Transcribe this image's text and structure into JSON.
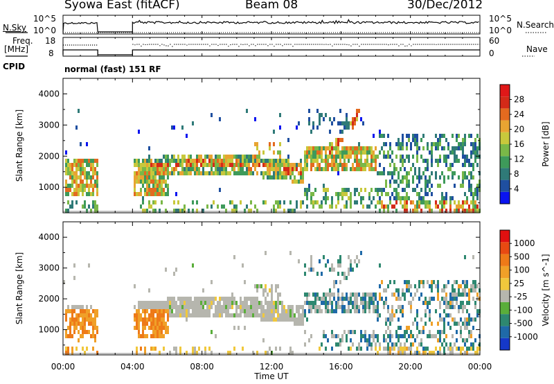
{
  "header": {
    "title": "Syowa East (fitACF)",
    "beam": "Beam 08",
    "date": "30/Dec/2012"
  },
  "strips": {
    "nsky_label": "N.Sky",
    "nsky_ticks": [
      "10^5",
      "10^0"
    ],
    "nsearch_label": "N.Search",
    "nsearch_ticks": [
      "10^5",
      "10^0"
    ],
    "freq_label_1": "Freq.",
    "freq_label_2": "[MHz]",
    "freq_ticks": [
      "18",
      "8"
    ],
    "nave_label": "Nave",
    "nave_ticks": [
      "60",
      "0"
    ],
    "cpid_label": "CPID",
    "cpid_value": "normal (fast) 151 RF"
  },
  "chart_data": [
    {
      "type": "heatmap",
      "ylabel": "Slant Range [km]",
      "ylim": [
        180,
        4500
      ],
      "y_ticks": [
        "4000",
        "3000",
        "2000",
        "1000"
      ],
      "x_ticks": [
        "00:00",
        "04:00",
        "08:00",
        "12:00",
        "16:00",
        "20:00",
        "00:00"
      ],
      "xlim_hours": [
        0,
        24
      ],
      "data_gap_hours": [
        2,
        4
      ],
      "colorbar": {
        "label": "Power [dB]",
        "ticks": [
          "28",
          "24",
          "20",
          "16",
          "12",
          "8",
          "4"
        ],
        "colors": [
          "#0a14f0",
          "#1f4fa0",
          "#2f7a78",
          "#3e9a5a",
          "#7ab848",
          "#c8c83c",
          "#e8a432",
          "#e36a1f",
          "#d42a18",
          "#e01818"
        ]
      },
      "features": [
        {
          "hours": [
            0.0,
            2.0
          ],
          "range_km": [
            700,
            1800
          ],
          "note": "echo band"
        },
        {
          "hours": [
            4.0,
            13.5
          ],
          "range_km": [
            1000,
            2000
          ],
          "note": "main band"
        },
        {
          "hours": [
            14.0,
            17.5
          ],
          "range_km": [
            1500,
            2400
          ],
          "note": "band"
        },
        {
          "hours": [
            15.5,
            17.5
          ],
          "range_km": [
            2000,
            3300
          ],
          "note": "rising streaks"
        },
        {
          "hours": [
            19.5,
            24.0
          ],
          "range_km": [
            200,
            2500
          ],
          "note": "patchy"
        }
      ]
    },
    {
      "type": "heatmap",
      "ylabel": "Slant Range [km]",
      "ylim": [
        180,
        4500
      ],
      "y_ticks": [
        "4000",
        "3000",
        "2000",
        "1000"
      ],
      "x_ticks": [
        "00:00",
        "04:00",
        "08:00",
        "12:00",
        "16:00",
        "20:00",
        "00:00"
      ],
      "xlabel": "Time UT",
      "xlim_hours": [
        0,
        24
      ],
      "data_gap_hours": [
        2,
        4
      ],
      "colorbar": {
        "label": "Velocity [m s^-1]",
        "ticks": [
          "1000",
          "500",
          "100",
          "25",
          "-25",
          "-100",
          "-500",
          "-1000"
        ],
        "colors": [
          "#1538c8",
          "#1f6aa8",
          "#2e8870",
          "#5aae3a",
          "#b6b6ae",
          "#f0c83c",
          "#f0a028",
          "#ee7a18",
          "#e84a12",
          "#e01010"
        ]
      }
    }
  ]
}
